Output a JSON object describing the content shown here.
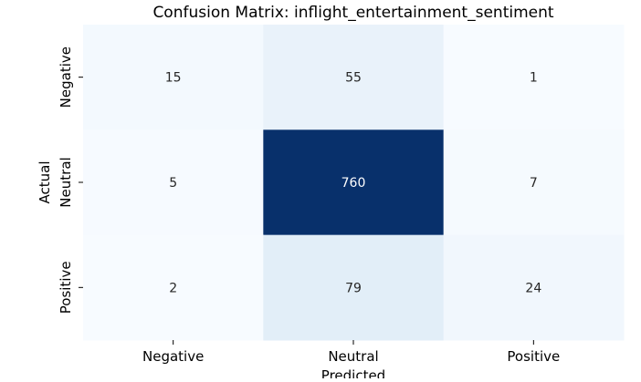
{
  "chart_data": {
    "type": "heatmap",
    "title": "Confusion Matrix: inflight_entertainment_sentiment",
    "xlabel": "Predicted",
    "ylabel": "Actual",
    "x_categories": [
      "Negative",
      "Neutral",
      "Positive"
    ],
    "y_categories": [
      "Negative",
      "Neutral",
      "Positive"
    ],
    "values": [
      [
        15,
        55,
        1
      ],
      [
        5,
        760,
        7
      ],
      [
        2,
        79,
        24
      ]
    ],
    "value_labels": [
      [
        "15",
        "55",
        "1"
      ],
      [
        "5",
        "760",
        "7"
      ],
      [
        "2",
        "79",
        "24"
      ]
    ],
    "colormap": "Blues",
    "color_low": "#f7fbff",
    "color_high": "#08306b",
    "colorbar": false,
    "grid": false
  }
}
